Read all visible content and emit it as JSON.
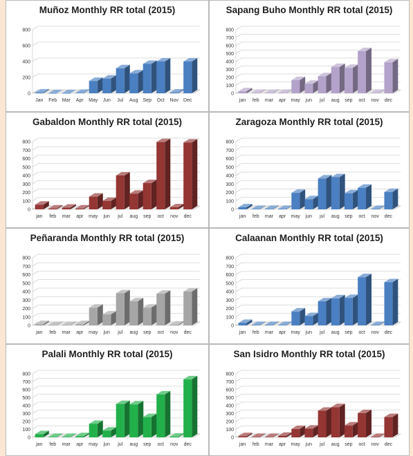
{
  "chart_data": [
    {
      "type": "bar",
      "title": "Muñoz Monthly RR total (2015)",
      "categories": [
        "Jan",
        "Feb",
        "Mar",
        "Apr",
        "May",
        "Jun",
        "Jul",
        "Aug",
        "Sep",
        "Oct",
        "Nov",
        "Dec"
      ],
      "values": [
        10,
        0,
        0,
        5,
        155,
        185,
        315,
        250,
        370,
        400,
        10,
        400
      ],
      "yticks": [
        0,
        200,
        400,
        600,
        800
      ],
      "ylim": [
        0,
        800
      ],
      "color": "#4a7fc1",
      "grid": true
    },
    {
      "type": "bar",
      "title": "Sapang Buho Monthly RR total (2015)",
      "categories": [
        "jan",
        "feb",
        "mar",
        "apr",
        "may",
        "jun",
        "jul",
        "aug",
        "sep",
        "oct",
        "nov",
        "dec"
      ],
      "values": [
        25,
        5,
        5,
        5,
        165,
        120,
        215,
        330,
        320,
        530,
        5,
        390
      ],
      "yticks": [
        0,
        100,
        200,
        300,
        400,
        500,
        600,
        700,
        800
      ],
      "ylim": [
        0,
        800
      ],
      "color": "#b3a2c9",
      "grid": true
    },
    {
      "type": "bar",
      "title": "Gabaldon Monthly RR total (2015)",
      "categories": [
        "jan",
        "feb",
        "mar",
        "apr",
        "may",
        "jun",
        "jul",
        "aug",
        "sep",
        "oct",
        "nov",
        "dec"
      ],
      "values": [
        55,
        10,
        20,
        10,
        150,
        100,
        400,
        185,
        310,
        795,
        25,
        790
      ],
      "yticks": [
        0,
        100,
        200,
        300,
        400,
        500,
        600,
        700,
        800
      ],
      "ylim": [
        0,
        800
      ],
      "color": "#943634",
      "grid": true
    },
    {
      "type": "bar",
      "title": "Zaragoza Monthly RR total (2015)",
      "categories": [
        "jan",
        "feb",
        "mar",
        "apr",
        "may",
        "jun",
        "jul",
        "aug",
        "sep",
        "oct",
        "nov",
        "dec"
      ],
      "values": [
        25,
        5,
        5,
        5,
        195,
        120,
        365,
        380,
        190,
        255,
        5,
        205
      ],
      "yticks": [
        0,
        100,
        200,
        300,
        400,
        500,
        600,
        700,
        800
      ],
      "ylim": [
        0,
        800
      ],
      "color": "#4a7fc1",
      "grid": true
    },
    {
      "type": "bar",
      "title": "Peñaranda Monthly RR total (2015)",
      "categories": [
        "jan",
        "feb",
        "mar",
        "apr",
        "may",
        "jun",
        "jul",
        "aug",
        "sep",
        "oct",
        "nov",
        "dec"
      ],
      "values": [
        15,
        5,
        5,
        15,
        210,
        130,
        380,
        285,
        210,
        375,
        10,
        400
      ],
      "yticks": [
        0,
        100,
        200,
        300,
        400,
        500,
        600,
        700,
        800
      ],
      "ylim": [
        0,
        800
      ],
      "color": "#a6a6a6",
      "grid": true
    },
    {
      "type": "bar",
      "title": "Calaanan Monthly RR total (2015)",
      "categories": [
        "jan",
        "feb",
        "mar",
        "apr",
        "may",
        "jun",
        "jul",
        "aug",
        "sep",
        "oct",
        "nov",
        "dec"
      ],
      "values": [
        30,
        5,
        5,
        5,
        165,
        110,
        285,
        320,
        325,
        570,
        5,
        510
      ],
      "yticks": [
        0,
        100,
        200,
        300,
        400,
        500,
        600,
        700,
        800
      ],
      "ylim": [
        0,
        800
      ],
      "color": "#4a7fc1",
      "grid": true
    },
    {
      "type": "bar",
      "title": "Palali Monthly RR total (2015)",
      "categories": [
        "jan",
        "feb",
        "mar",
        "apr",
        "may",
        "jun",
        "jul",
        "aug",
        "sep",
        "oct",
        "nov",
        "dec"
      ],
      "values": [
        40,
        5,
        5,
        15,
        170,
        85,
        420,
        415,
        255,
        540,
        10,
        730
      ],
      "yticks": [
        0,
        100,
        200,
        300,
        400,
        500,
        600,
        700,
        800
      ],
      "ylim": [
        0,
        800
      ],
      "color": "#22b04b",
      "grid": true
    },
    {
      "type": "bar",
      "title": "San Isidro Monthly RR total (2015)",
      "categories": [
        "jan",
        "feb",
        "mar",
        "apr",
        "may",
        "jun",
        "jul",
        "aug",
        "sep",
        "oct",
        "nov",
        "dec"
      ],
      "values": [
        15,
        5,
        5,
        20,
        105,
        110,
        335,
        380,
        150,
        305,
        5,
        255
      ],
      "yticks": [
        0,
        100,
        200,
        300,
        400,
        500,
        600,
        700,
        800
      ],
      "ylim": [
        0,
        800
      ],
      "color": "#943634",
      "grid": true
    }
  ]
}
